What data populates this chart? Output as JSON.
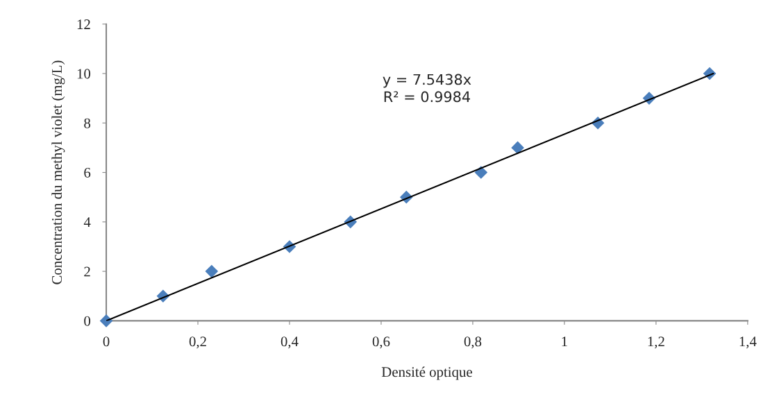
{
  "chart_data": {
    "type": "scatter",
    "xlabel": "Densité optique",
    "ylabel": "Concentration du methyl violet (mg/L)",
    "x": [
      0,
      0.124,
      0.23,
      0.4,
      0.533,
      0.655,
      0.818,
      0.898,
      1.073,
      1.185,
      1.317
    ],
    "series": [
      {
        "color": "#4a7ebb",
        "marker": "diamond",
        "values": [
          0,
          1,
          2,
          3,
          4,
          5,
          6,
          7,
          8,
          9,
          10
        ]
      },
      {
        "type": "line",
        "color": "#000000",
        "marker": "none",
        "line_style": "solid",
        "x": [
          0,
          1.325
        ],
        "values": [
          0,
          10
        ]
      }
    ],
    "annotations": [
      "y = 7.5438x\nR² = 0.9984"
    ],
    "xlim": [
      0,
      1.4
    ],
    "ylim": [
      0,
      12
    ],
    "xticks": [
      0,
      {
        "value": 0.2,
        "label": "0,2"
      },
      {
        "value": 0.4,
        "label": "0,4"
      },
      {
        "value": 0.6,
        "label": "0,6"
      },
      {
        "value": 0.8,
        "label": "0,8"
      },
      1,
      {
        "value": 1.2,
        "label": "1,2"
      },
      {
        "value": 1.4,
        "label": "1,4"
      }
    ],
    "yticks": [
      0,
      2,
      4,
      6,
      8,
      10,
      12
    ],
    "grid": false,
    "legend": false
  }
}
